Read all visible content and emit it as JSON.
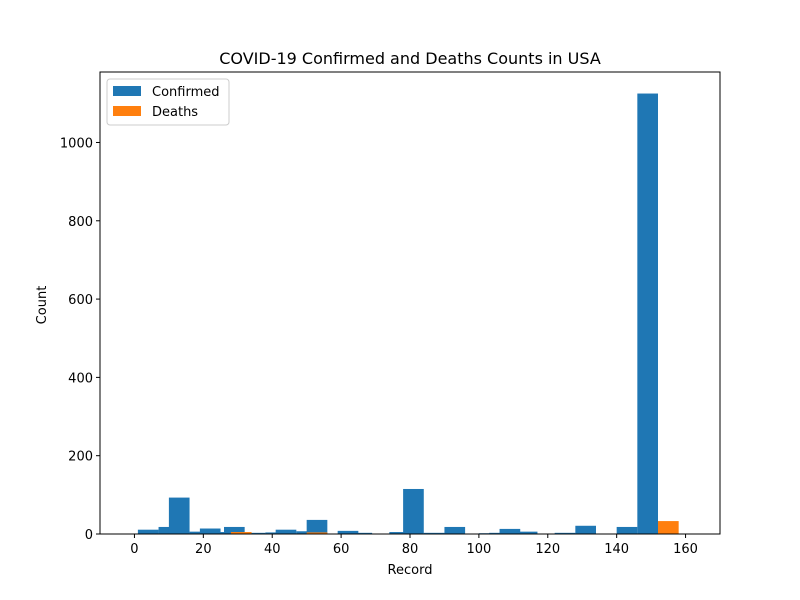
{
  "chart_data": {
    "type": "bar",
    "title": "COVID-19 Confirmed and Deaths Counts in USA",
    "xlabel": "Record",
    "ylabel": "Count",
    "xlim": [
      -10,
      170
    ],
    "ylim": [
      0,
      1180
    ],
    "xticks": [
      0,
      20,
      40,
      60,
      80,
      100,
      120,
      140,
      160
    ],
    "yticks": [
      0,
      200,
      400,
      600,
      800,
      1000
    ],
    "legend_position": "top-left",
    "bar_width": 6,
    "series": [
      {
        "name": "Confirmed",
        "color": "#1f77b4",
        "points": [
          {
            "x": -1,
            "y": 1
          },
          {
            "x": 4,
            "y": 11
          },
          {
            "x": 10,
            "y": 18
          },
          {
            "x": 13,
            "y": 93
          },
          {
            "x": 19,
            "y": 6
          },
          {
            "x": 22,
            "y": 14
          },
          {
            "x": 25,
            "y": 5
          },
          {
            "x": 29,
            "y": 18
          },
          {
            "x": 35,
            "y": 3
          },
          {
            "x": 41,
            "y": 4
          },
          {
            "x": 44,
            "y": 11
          },
          {
            "x": 50,
            "y": 7
          },
          {
            "x": 53,
            "y": 36
          },
          {
            "x": 62,
            "y": 8
          },
          {
            "x": 66,
            "y": 3
          },
          {
            "x": 77,
            "y": 5
          },
          {
            "x": 81,
            "y": 115
          },
          {
            "x": 87,
            "y": 3
          },
          {
            "x": 93,
            "y": 18
          },
          {
            "x": 103,
            "y": 2
          },
          {
            "x": 106,
            "y": 3
          },
          {
            "x": 109,
            "y": 13
          },
          {
            "x": 114,
            "y": 6
          },
          {
            "x": 125,
            "y": 3
          },
          {
            "x": 131,
            "y": 21
          },
          {
            "x": 143,
            "y": 18
          },
          {
            "x": 149,
            "y": 1125
          }
        ]
      },
      {
        "name": "Deaths",
        "color": "#ff7f0e",
        "points": [
          {
            "x": 31,
            "y": 5
          },
          {
            "x": 35,
            "y": 1
          },
          {
            "x": 53,
            "y": 4
          },
          {
            "x": 79,
            "y": 1
          },
          {
            "x": 155,
            "y": 33
          }
        ]
      }
    ]
  }
}
